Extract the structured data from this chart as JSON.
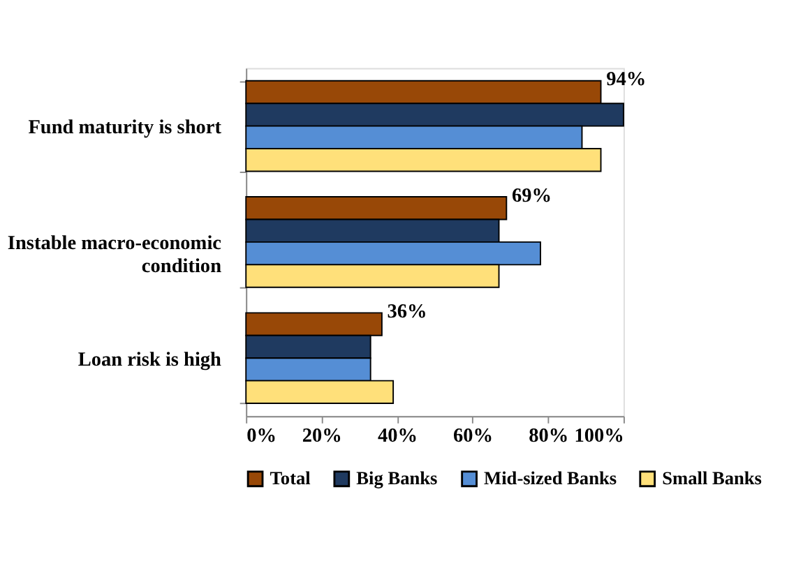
{
  "chart_data": {
    "type": "bar",
    "orientation": "horizontal",
    "categories": [
      "Fund maturity is short",
      "Instable macro-economic condition",
      "Loan risk is high"
    ],
    "series": [
      {
        "name": "Total",
        "color": "#984807",
        "values": [
          94,
          69,
          36
        ],
        "value_labels": [
          "94%",
          "69%",
          "36%"
        ]
      },
      {
        "name": "Big Banks",
        "color": "#1f3a60",
        "values": [
          100,
          67,
          33
        ]
      },
      {
        "name": "Mid-sized Banks",
        "color": "#558ed5",
        "values": [
          89,
          78,
          33
        ]
      },
      {
        "name": "Small Banks",
        "color": "#ffe07a",
        "values": [
          94,
          67,
          39
        ]
      }
    ],
    "xlim": [
      0,
      100
    ],
    "xticks": [
      {
        "value": 0,
        "label": "0%"
      },
      {
        "value": 20,
        "label": "20%"
      },
      {
        "value": 40,
        "label": "40%"
      },
      {
        "value": 60,
        "label": "60%"
      },
      {
        "value": 80,
        "label": "80%"
      },
      {
        "value": 100,
        "label": "100%"
      }
    ],
    "grid": false,
    "legend": "bottom"
  }
}
